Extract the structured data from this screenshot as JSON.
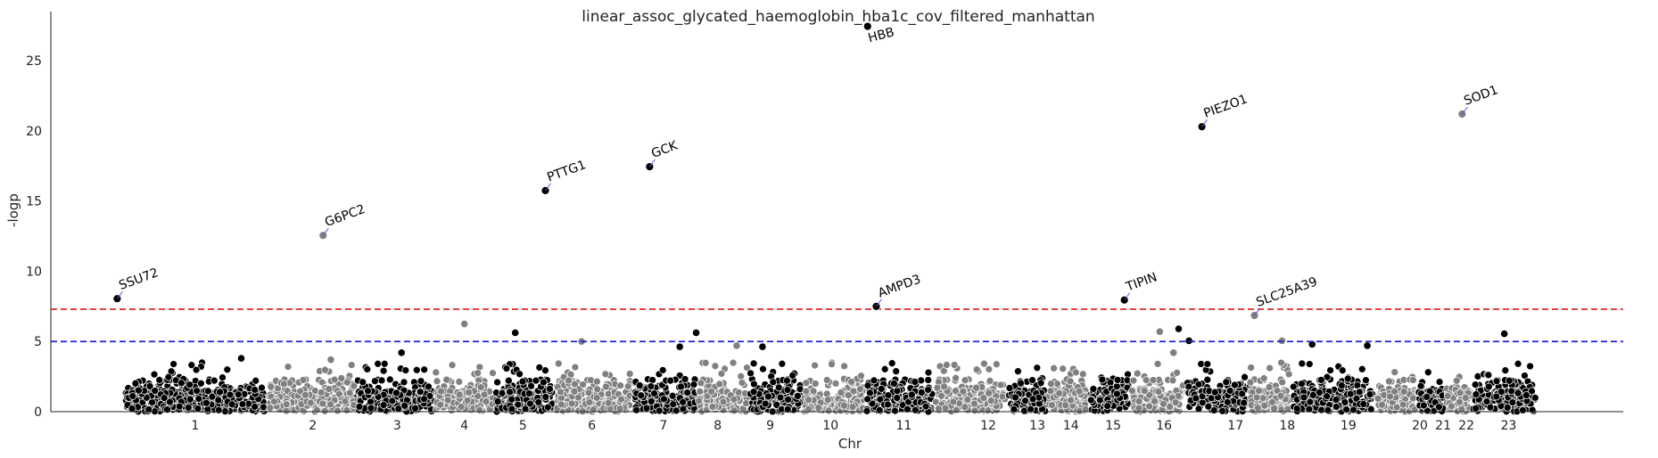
{
  "chart_data": {
    "type": "scatter",
    "title": "linear_assoc_glycated_haemoglobin_hba1c_cov_filtered_manhattan",
    "xlabel": "Chr",
    "ylabel": "-logp",
    "ylim": [
      0,
      28.5
    ],
    "yticks": [
      0,
      5,
      10,
      15,
      20,
      25
    ],
    "grid": false,
    "colors": {
      "odd_chr": "#000000",
      "even_chr": "#808080",
      "point_edge": "#ffffff",
      "connector": "#5555dd"
    },
    "thresholds": [
      {
        "value": 7.3,
        "color": "#e8262a",
        "style": "dashed"
      },
      {
        "value": 5.0,
        "color": "#2222dd",
        "style": "dashed"
      }
    ],
    "chromosomes": [
      {
        "label": "1",
        "span": [
          0.0,
          1.65
        ],
        "tick": 0.825
      },
      {
        "label": "2",
        "span": [
          1.65,
          2.69
        ],
        "tick": 2.19
      },
      {
        "label": "3",
        "span": [
          2.69,
          3.6
        ],
        "tick": 3.17
      },
      {
        "label": "4",
        "span": [
          3.6,
          4.3
        ],
        "tick": 3.95
      },
      {
        "label": "5",
        "span": [
          4.3,
          5.0
        ],
        "tick": 4.63
      },
      {
        "label": "6",
        "span": [
          5.0,
          5.9
        ],
        "tick": 5.43
      },
      {
        "label": "7",
        "span": [
          5.9,
          6.65
        ],
        "tick": 6.26
      },
      {
        "label": "8",
        "span": [
          6.65,
          7.25
        ],
        "tick": 6.89
      },
      {
        "label": "9",
        "span": [
          7.25,
          7.88
        ],
        "tick": 7.5
      },
      {
        "label": "10",
        "span": [
          7.88,
          8.6
        ],
        "tick": 8.2
      },
      {
        "label": "11",
        "span": [
          8.6,
          9.4
        ],
        "tick": 9.05
      },
      {
        "label": "12",
        "span": [
          9.4,
          10.25
        ],
        "tick": 10.03
      },
      {
        "label": "13",
        "span": [
          10.25,
          10.72
        ],
        "tick": 10.6
      },
      {
        "label": "14",
        "span": [
          10.72,
          11.2
        ],
        "tick": 10.99
      },
      {
        "label": "15",
        "span": [
          11.2,
          11.68
        ],
        "tick": 11.48
      },
      {
        "label": "16",
        "span": [
          11.68,
          12.32
        ],
        "tick": 12.07
      },
      {
        "label": "17",
        "span": [
          12.32,
          13.05
        ],
        "tick": 12.9
      },
      {
        "label": "18",
        "span": [
          13.05,
          13.55
        ],
        "tick": 13.5
      },
      {
        "label": "19",
        "span": [
          13.55,
          14.52
        ],
        "tick": 14.21
      },
      {
        "label": "20",
        "span": [
          14.52,
          15.0
        ],
        "tick": 15.04
      },
      {
        "label": "21",
        "span": [
          15.0,
          15.33
        ],
        "tick": 15.31
      },
      {
        "label": "22",
        "span": [
          15.33,
          15.64
        ],
        "tick": 15.58
      },
      {
        "label": "23",
        "span": [
          15.64,
          16.4
        ],
        "tick": 16.07
      }
    ],
    "xlim": [
      -0.85,
      17.4
    ],
    "highlight_points": [
      {
        "x": 7.41,
        "y": 4.62,
        "chr": "9"
      },
      {
        "x": 4.54,
        "y": 5.62,
        "chr": "5"
      },
      {
        "x": 3.95,
        "y": 6.25,
        "chr": "4"
      },
      {
        "x": 6.45,
        "y": 4.62,
        "chr": "7"
      },
      {
        "x": 6.64,
        "y": 5.62,
        "chr": "7"
      },
      {
        "x": 5.31,
        "y": 5.0,
        "chr": "6"
      },
      {
        "x": 3.22,
        "y": 4.2,
        "chr": "3"
      },
      {
        "x": 12.02,
        "y": 5.7,
        "chr": "16"
      },
      {
        "x": 12.18,
        "y": 4.2,
        "chr": "16"
      },
      {
        "x": 12.24,
        "y": 5.9,
        "chr": "17"
      },
      {
        "x": 12.36,
        "y": 5.05,
        "chr": "17"
      },
      {
        "x": 13.44,
        "y": 5.05,
        "chr": "18"
      },
      {
        "x": 13.79,
        "y": 4.8,
        "chr": "19"
      },
      {
        "x": 14.43,
        "y": 4.7,
        "chr": "19"
      },
      {
        "x": 16.02,
        "y": 5.55,
        "chr": "23"
      },
      {
        "x": 1.36,
        "y": 3.8,
        "chr": "1"
      },
      {
        "x": 2.4,
        "y": 3.7,
        "chr": "2"
      },
      {
        "x": 7.11,
        "y": 4.7,
        "chr": "8"
      }
    ],
    "annotations": [
      {
        "gene": "SSU72",
        "x": -0.08,
        "y": 8.05
      },
      {
        "gene": "G6PC2",
        "x": 2.31,
        "y": 12.55
      },
      {
        "gene": "PTTG1",
        "x": 4.89,
        "y": 15.75
      },
      {
        "gene": "GCK",
        "x": 6.1,
        "y": 17.45
      },
      {
        "gene": "HBB",
        "x": 8.63,
        "y": 27.45
      },
      {
        "gene": "AMPD3",
        "x": 8.73,
        "y": 7.5
      },
      {
        "gene": "TIPIN",
        "x": 11.61,
        "y": 7.95
      },
      {
        "gene": "PIEZO1",
        "x": 12.51,
        "y": 20.3
      },
      {
        "gene": "SLC25A39",
        "x": 13.12,
        "y": 6.85
      },
      {
        "gene": "SOD1",
        "x": 15.53,
        "y": 21.2
      }
    ]
  }
}
